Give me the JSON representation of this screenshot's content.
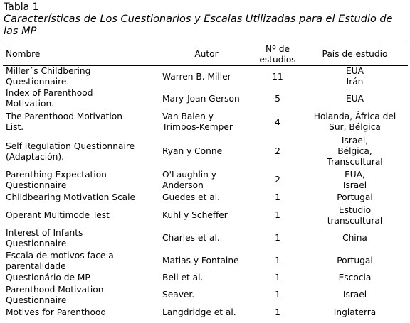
{
  "header": {
    "title": "Tabla 1",
    "caption": "Características de Los Cuestionarios y Escalas Utilizadas para el Estudio de las MP"
  },
  "table": {
    "columns": [
      "Nombre",
      "Autor",
      "Nº de\nestudios",
      "País de estudio"
    ],
    "rows": [
      [
        "Miller´s Childbering\nQuestionnaire.",
        "Warren B. Miller",
        11,
        "EUA\nIrán"
      ],
      [
        "Index of Parenthood\nMotivation.",
        "Mary-Joan Gerson",
        5,
        "EUA"
      ],
      [
        "The Parenthood Motivation\nList.",
        "Van Balen y\nTrimbos-Kemper",
        4,
        "Holanda, África del\nSur, Bélgica"
      ],
      [
        "Self Regulation Questionnaire\n(Adaptación).",
        "Ryan y Conne",
        2,
        "Israel,\nBélgica,\nTranscultural"
      ],
      [
        "Parenthing Expectation\nQuestionnaire",
        "O'Laughlin y\nAnderson",
        2,
        "EUA,\nIsrael"
      ],
      [
        "Childbearing Motivation Scale",
        "Guedes et al.",
        1,
        "Portugal"
      ],
      [
        "Operant Multimode Test",
        "Kuhl y Scheffer",
        1,
        "Estudio\ntranscultural"
      ],
      [
        "Interest of Infants\nQuestionnaire",
        "Charles et al.",
        1,
        "China"
      ],
      [
        "Escala de motivos face a\nparentalidade",
        "Matias y Fontaine",
        1,
        "Portugal"
      ],
      [
        "Questionário de MP",
        "Bell et al.",
        1,
        "Escocia"
      ],
      [
        "Parenthood Motivation\nQuestionnaire",
        "Seaver.",
        1,
        "Israel"
      ],
      [
        "Motives for Parenthood",
        "Langdridge et al.",
        1,
        "Inglaterra"
      ]
    ]
  }
}
